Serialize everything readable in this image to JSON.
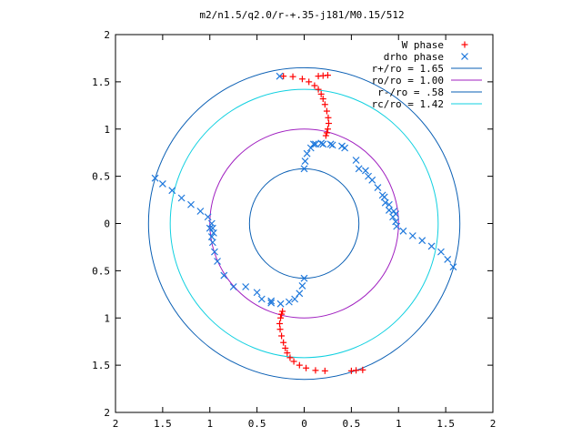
{
  "chart_data": {
    "type": "scatter",
    "title": "m2/n1.5/q2.0/r-+.35-j181/M0.15/512",
    "xlabel": "",
    "ylabel": "",
    "xlim": [
      -2,
      2
    ],
    "ylim": [
      -2,
      2
    ],
    "x_ticks": [
      {
        "value": -2,
        "label": "2"
      },
      {
        "value": -1.5,
        "label": "1.5"
      },
      {
        "value": -1,
        "label": "1"
      },
      {
        "value": -0.5,
        "label": "0.5"
      },
      {
        "value": 0,
        "label": "0"
      },
      {
        "value": 0.5,
        "label": "0.5"
      },
      {
        "value": 1,
        "label": "1"
      },
      {
        "value": 1.5,
        "label": "1.5"
      },
      {
        "value": 2,
        "label": "2"
      }
    ],
    "y_ticks": [
      {
        "value": 2,
        "label": "2"
      },
      {
        "value": 1.5,
        "label": "1.5"
      },
      {
        "value": 1,
        "label": "1"
      },
      {
        "value": 0.5,
        "label": "0.5"
      },
      {
        "value": 0,
        "label": "0"
      },
      {
        "value": -0.5,
        "label": "0.5"
      },
      {
        "value": -1,
        "label": "1"
      },
      {
        "value": -1.5,
        "label": "1.5"
      },
      {
        "value": -2,
        "label": "2"
      }
    ],
    "grid": false,
    "legend_position": "top-right",
    "circles": [
      {
        "name": "r+/ro = 1.65",
        "radius": 1.65,
        "color": "#0a5fb4"
      },
      {
        "name": "ro/ro = 1.00",
        "radius": 1.0,
        "color": "#a020c0"
      },
      {
        "name": "r-/ro = .58",
        "radius": 0.58,
        "color": "#0a5fb4"
      },
      {
        "name": "rc/ro = 1.42",
        "radius": 1.42,
        "color": "#10d0e0"
      }
    ],
    "series": [
      {
        "name": "W phase",
        "marker": "plus",
        "color": "#ff0000",
        "points": [
          [
            -0.22,
            1.56
          ],
          [
            -0.12,
            1.555
          ],
          [
            -0.02,
            1.53
          ],
          [
            0.05,
            1.5
          ],
          [
            0.11,
            1.46
          ],
          [
            0.15,
            1.42
          ],
          [
            0.18,
            1.37
          ],
          [
            0.2,
            1.32
          ],
          [
            0.22,
            1.26
          ],
          [
            0.24,
            1.19
          ],
          [
            0.255,
            1.12
          ],
          [
            0.26,
            1.06
          ],
          [
            0.25,
            1.0
          ],
          [
            0.24,
            0.96
          ],
          [
            0.23,
            0.93
          ],
          [
            0.25,
            1.57
          ],
          [
            0.2,
            1.565
          ],
          [
            0.15,
            1.56
          ],
          [
            0.22,
            -1.56
          ],
          [
            0.12,
            -1.555
          ],
          [
            0.02,
            -1.53
          ],
          [
            -0.05,
            -1.5
          ],
          [
            -0.11,
            -1.46
          ],
          [
            -0.15,
            -1.42
          ],
          [
            -0.18,
            -1.37
          ],
          [
            -0.2,
            -1.32
          ],
          [
            -0.22,
            -1.26
          ],
          [
            -0.24,
            -1.19
          ],
          [
            -0.255,
            -1.12
          ],
          [
            -0.26,
            -1.06
          ],
          [
            -0.25,
            -1.0
          ],
          [
            -0.24,
            -0.96
          ],
          [
            -0.23,
            -0.93
          ],
          [
            0.5,
            -1.56
          ],
          [
            0.55,
            -1.555
          ],
          [
            0.62,
            -1.55
          ]
        ]
      },
      {
        "name": "drho phase",
        "marker": "x",
        "color": "#1e78dc",
        "points": [
          [
            -0.26,
            1.56
          ],
          [
            -1.58,
            0.48
          ],
          [
            -1.5,
            0.42
          ],
          [
            -1.4,
            0.35
          ],
          [
            -1.3,
            0.27
          ],
          [
            -1.2,
            0.2
          ],
          [
            -1.1,
            0.13
          ],
          [
            -1.02,
            0.07
          ],
          [
            -0.98,
            0.0
          ],
          [
            -0.97,
            -0.05
          ],
          [
            -0.96,
            -0.1
          ],
          [
            0.0,
            0.58
          ],
          [
            0.01,
            0.66
          ],
          [
            0.03,
            0.74
          ],
          [
            0.07,
            0.8
          ],
          [
            0.12,
            0.84
          ],
          [
            0.18,
            0.85
          ],
          [
            0.28,
            0.84
          ],
          [
            0.43,
            0.8
          ],
          [
            0.55,
            0.67
          ],
          [
            0.65,
            0.56
          ],
          [
            0.72,
            0.46
          ],
          [
            0.78,
            0.38
          ],
          [
            0.83,
            0.3
          ],
          [
            0.86,
            0.22
          ],
          [
            0.9,
            0.14
          ],
          [
            0.94,
            0.07
          ],
          [
            0.97,
            0.02
          ],
          [
            0.98,
            -0.03
          ],
          [
            1.05,
            -0.08
          ],
          [
            1.15,
            -0.13
          ],
          [
            1.25,
            -0.18
          ],
          [
            1.35,
            -0.24
          ],
          [
            1.45,
            -0.3
          ],
          [
            1.52,
            -0.38
          ],
          [
            1.58,
            -0.46
          ],
          [
            0.0,
            -0.58
          ],
          [
            -0.02,
            -0.66
          ],
          [
            -0.05,
            -0.74
          ],
          [
            -0.1,
            -0.8
          ],
          [
            -0.16,
            -0.83
          ],
          [
            -0.25,
            -0.85
          ],
          [
            -0.35,
            -0.82
          ],
          [
            -0.5,
            -0.73
          ],
          [
            -0.62,
            -0.67
          ],
          [
            -1.0,
            -0.05
          ],
          [
            -0.98,
            -0.14
          ],
          [
            -0.97,
            -0.2
          ],
          [
            -0.95,
            -0.3
          ],
          [
            -0.92,
            -0.4
          ],
          [
            -0.85,
            -0.55
          ],
          [
            -0.75,
            -0.67
          ],
          [
            -0.45,
            -0.8
          ],
          [
            -0.35,
            -0.84
          ],
          [
            0.1,
            0.84
          ],
          [
            0.2,
            0.84
          ],
          [
            0.3,
            0.83
          ],
          [
            0.4,
            0.82
          ],
          [
            0.58,
            0.58
          ],
          [
            0.68,
            0.5
          ],
          [
            0.85,
            0.28
          ],
          [
            0.9,
            0.2
          ],
          [
            0.95,
            0.13
          ],
          [
            0.97,
            0.1
          ]
        ]
      }
    ]
  }
}
